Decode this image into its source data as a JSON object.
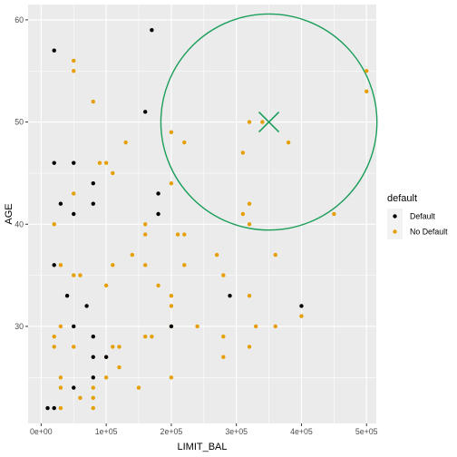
{
  "chart_data": {
    "type": "scatter",
    "xlabel": "LIMIT_BAL",
    "ylabel": "AGE",
    "xlim": [
      -20000,
      515000
    ],
    "ylim": [
      20.5,
      61.5
    ],
    "x_ticks": [
      0,
      100000,
      200000,
      300000,
      400000,
      500000
    ],
    "x_tick_labels": [
      "0e+00",
      "1e+05",
      "2e+05",
      "3e+05",
      "4e+05",
      "5e+05"
    ],
    "y_ticks": [
      30,
      40,
      50,
      60
    ],
    "y_tick_labels": [
      "30",
      "40",
      "50",
      "60"
    ],
    "grid": true,
    "legend": {
      "title": "default",
      "position": "right",
      "entries": [
        {
          "label": "Default",
          "color": "#000000"
        },
        {
          "label": "No Default",
          "color": "#E69F00"
        }
      ]
    },
    "series": [
      {
        "name": "Default",
        "color": "#000000",
        "points": [
          [
            10000,
            22
          ],
          [
            20000,
            22
          ],
          [
            20000,
            57
          ],
          [
            20000,
            46
          ],
          [
            20000,
            36
          ],
          [
            30000,
            42
          ],
          [
            40000,
            33
          ],
          [
            50000,
            46
          ],
          [
            50000,
            41
          ],
          [
            50000,
            30
          ],
          [
            50000,
            24
          ],
          [
            70000,
            32
          ],
          [
            80000,
            44
          ],
          [
            80000,
            42
          ],
          [
            80000,
            29
          ],
          [
            80000,
            27
          ],
          [
            80000,
            25
          ],
          [
            100000,
            27
          ],
          [
            160000,
            51
          ],
          [
            170000,
            59
          ],
          [
            180000,
            43
          ],
          [
            180000,
            41
          ],
          [
            200000,
            30
          ],
          [
            290000,
            33
          ],
          [
            400000,
            32
          ]
        ]
      },
      {
        "name": "No Default",
        "color": "#E69F00",
        "points": [
          [
            20000,
            40
          ],
          [
            20000,
            29
          ],
          [
            20000,
            28
          ],
          [
            30000,
            36
          ],
          [
            30000,
            30
          ],
          [
            30000,
            25
          ],
          [
            30000,
            24
          ],
          [
            30000,
            22
          ],
          [
            50000,
            56
          ],
          [
            50000,
            55
          ],
          [
            50000,
            43
          ],
          [
            50000,
            35
          ],
          [
            50000,
            28
          ],
          [
            60000,
            35
          ],
          [
            60000,
            23
          ],
          [
            80000,
            52
          ],
          [
            80000,
            24
          ],
          [
            80000,
            23
          ],
          [
            80000,
            22
          ],
          [
            90000,
            46
          ],
          [
            100000,
            46
          ],
          [
            100000,
            34
          ],
          [
            100000,
            27
          ],
          [
            100000,
            25
          ],
          [
            110000,
            45
          ],
          [
            110000,
            36
          ],
          [
            110000,
            28
          ],
          [
            120000,
            28
          ],
          [
            120000,
            26
          ],
          [
            130000,
            48
          ],
          [
            140000,
            37
          ],
          [
            150000,
            24
          ],
          [
            160000,
            40
          ],
          [
            160000,
            39
          ],
          [
            160000,
            36
          ],
          [
            160000,
            29
          ],
          [
            170000,
            29
          ],
          [
            180000,
            34
          ],
          [
            200000,
            49
          ],
          [
            200000,
            44
          ],
          [
            200000,
            33
          ],
          [
            200000,
            32
          ],
          [
            200000,
            30
          ],
          [
            200000,
            25
          ],
          [
            210000,
            39
          ],
          [
            220000,
            48
          ],
          [
            220000,
            39
          ],
          [
            220000,
            36
          ],
          [
            240000,
            30
          ],
          [
            270000,
            37
          ],
          [
            280000,
            35
          ],
          [
            280000,
            29
          ],
          [
            280000,
            27
          ],
          [
            310000,
            47
          ],
          [
            310000,
            41
          ],
          [
            320000,
            50
          ],
          [
            320000,
            42
          ],
          [
            320000,
            40
          ],
          [
            320000,
            33
          ],
          [
            320000,
            28
          ],
          [
            330000,
            30
          ],
          [
            340000,
            50
          ],
          [
            360000,
            37
          ],
          [
            360000,
            30
          ],
          [
            380000,
            48
          ],
          [
            400000,
            31
          ],
          [
            450000,
            41
          ],
          [
            500000,
            55
          ],
          [
            500000,
            53
          ]
        ]
      }
    ],
    "annotations": [
      {
        "type": "cross",
        "x": 350000,
        "y": 50,
        "color": "#1B9E5A"
      },
      {
        "type": "circle",
        "cx": 350000,
        "cy": 50,
        "r_x_units": 166000,
        "color": "#1B9E5A"
      }
    ]
  }
}
